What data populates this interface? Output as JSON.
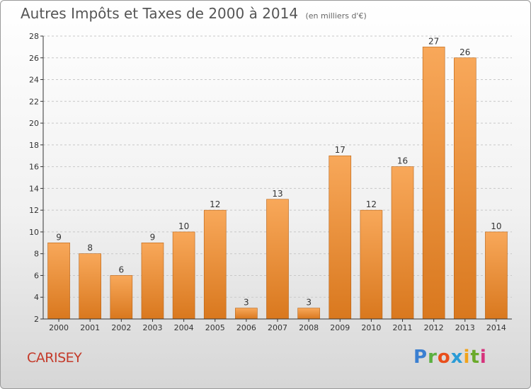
{
  "title": "Autres Impôts et Taxes de 2000 à 2014",
  "subtitle": "(en milliers d'€)",
  "location": "CARISEY",
  "logo": {
    "text": "Proxiti",
    "letters": [
      "P",
      "r",
      "o",
      "x",
      "i",
      "t",
      "i"
    ],
    "colors": [
      "#3a7fd1",
      "#5bb040",
      "#e94e1b",
      "#2a9bd6",
      "#f2a31a",
      "#6aaa2a",
      "#d6337c"
    ]
  },
  "colors": {
    "bar_top": "#f8a85a",
    "bar_bottom": "#d9781e",
    "bar_edge": "#b86214",
    "axis": "#333333",
    "grid": "#c8c8c8"
  },
  "chart_data": {
    "type": "bar",
    "categories": [
      "2000",
      "2001",
      "2002",
      "2003",
      "2004",
      "2005",
      "2006",
      "2007",
      "2008",
      "2009",
      "2010",
      "2011",
      "2012",
      "2013",
      "2014"
    ],
    "values": [
      9,
      8,
      6,
      9,
      10,
      12,
      3,
      13,
      3,
      17,
      12,
      16,
      27,
      26,
      10
    ],
    "ylim": [
      2,
      28
    ],
    "yticks": [
      2,
      4,
      6,
      8,
      10,
      12,
      14,
      16,
      18,
      20,
      22,
      24,
      26,
      28
    ],
    "grid": true,
    "data_labels": true
  }
}
